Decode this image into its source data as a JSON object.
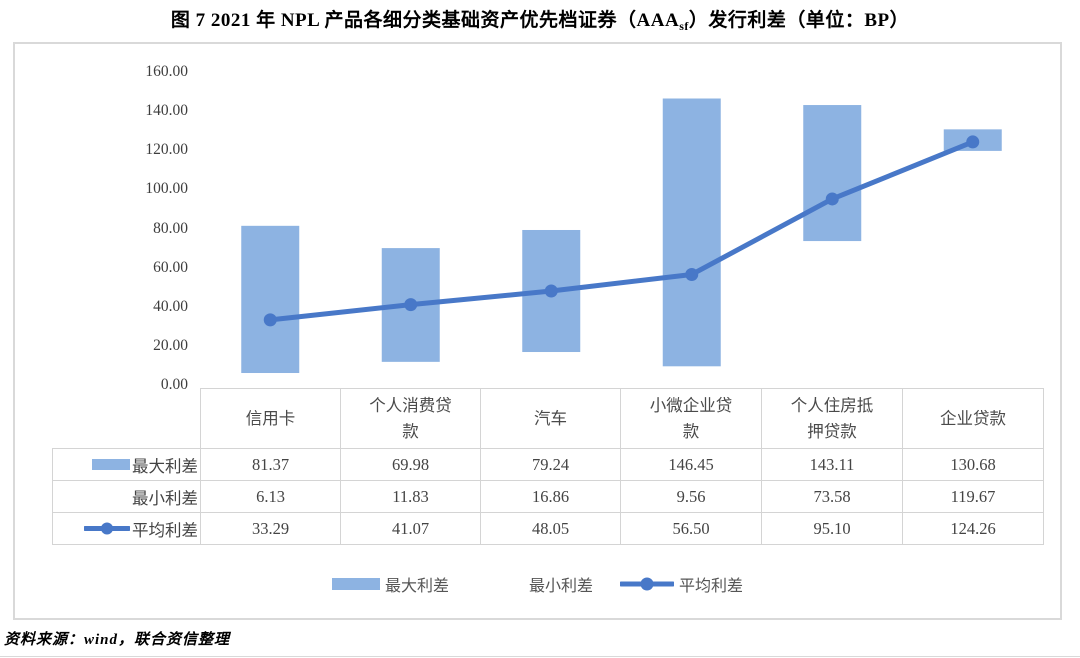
{
  "title": {
    "prefix": "图 7  2021 年 NPL 产品各细分类基础资产优先档证券（AAA",
    "subscript": "sf",
    "suffix": "）发行利差（单位：BP）"
  },
  "source_note": "资料来源：wind，联合资信整理",
  "colors": {
    "bar_fill": "#8DB3E2",
    "line": "#4878C8",
    "table_border": "#D4D4D4",
    "box_border": "#D9D9D9",
    "text": "#444444"
  },
  "chart_data": {
    "type": "bar",
    "subtype": "floating-range-bars-with-average-line",
    "title": "2021 年 NPL 产品各细分类基础资产优先档证券（AAAsf）发行利差（单位：BP）",
    "categories": [
      "信用卡",
      "个人消费贷款",
      "汽车",
      "小微企业贷款",
      "个人住房抵押贷款",
      "企业贷款"
    ],
    "series": [
      {
        "name": "最大利差",
        "role": "range-max",
        "style": "bar",
        "values": [
          81.37,
          69.98,
          79.24,
          146.45,
          143.11,
          130.68
        ]
      },
      {
        "name": "最小利差",
        "role": "range-min",
        "style": "hidden-bar",
        "values": [
          6.13,
          11.83,
          16.86,
          9.56,
          73.58,
          119.67
        ]
      },
      {
        "name": "平均利差",
        "role": "average",
        "style": "line-with-markers",
        "values": [
          33.29,
          41.07,
          48.05,
          56.5,
          95.1,
          124.26
        ]
      }
    ],
    "ylim": [
      0,
      160
    ],
    "ytick_step": 20,
    "yticks": [
      "0.00",
      "20.00",
      "40.00",
      "60.00",
      "80.00",
      "100.00",
      "120.00",
      "140.00",
      "160.00"
    ],
    "grid": false,
    "legend_position": "bottom"
  },
  "table": {
    "column_headers": [
      "信用卡",
      "个人消费贷款",
      "汽车",
      "小微企业贷款",
      "个人住房抵押贷款",
      "企业贷款"
    ],
    "rows": [
      {
        "label": "最大利差",
        "swatch": "bar",
        "values": [
          "81.37",
          "69.98",
          "79.24",
          "146.45",
          "143.11",
          "130.68"
        ]
      },
      {
        "label": "最小利差",
        "swatch": "none",
        "values": [
          "6.13",
          "11.83",
          "16.86",
          "9.56",
          "73.58",
          "119.67"
        ]
      },
      {
        "label": "平均利差",
        "swatch": "line",
        "values": [
          "33.29",
          "41.07",
          "48.05",
          "56.50",
          "95.10",
          "124.26"
        ]
      }
    ]
  },
  "legend": {
    "items": [
      {
        "label": "最大利差",
        "swatch": "bar"
      },
      {
        "label": "最小利差",
        "swatch": "none"
      },
      {
        "label": "平均利差",
        "swatch": "line"
      }
    ]
  }
}
